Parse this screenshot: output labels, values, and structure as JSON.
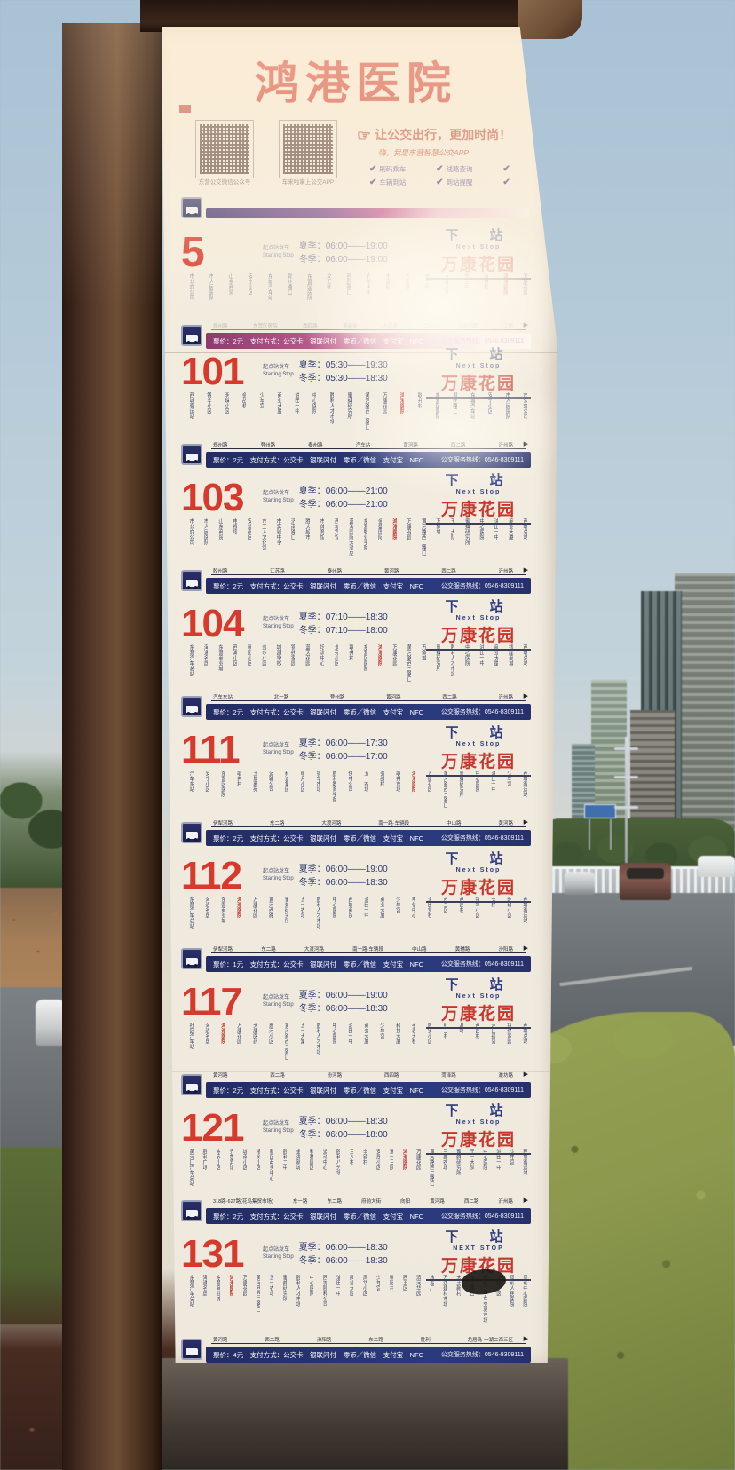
{
  "palette": {
    "accent_red": "#cf382d",
    "navy_bar": "#27306b",
    "next_blue": "#2c3a7e",
    "panel_bg": "#f0ebdf",
    "sky": "#a7c2d8",
    "hedge": "#8c9a48",
    "frame_brown": "#3a2417"
  },
  "sign": {
    "title": "鸿港医院",
    "qr_left_caption": "东营公交微信公众号",
    "qr_right_caption": "车来啦掌上公交APP",
    "slogan_line1": "让公交出行，更加时尚！",
    "slogan_line2": "嗨，我是东营智慧公交APP",
    "features": [
      "刷码乘车",
      "线路查询",
      "",
      "车辆到站",
      "到站提醒",
      ""
    ],
    "labels": {
      "start_cn": "起点站发车",
      "start_en": "Starting Stop",
      "summer": "夏季：",
      "winter": "冬季：",
      "next_cn": "下　站",
      "fare_label": "票价：",
      "pay_methods": "支付方式：公交卡　银联闪付　零币／微信　支付宝　NFC",
      "hotline": "公交服务热线：0546-8309111"
    },
    "highlight_stop": "鸿港医院",
    "routes": [
      {
        "number": "5",
        "summer": "06:00——19:00",
        "winter": "06:00——19:00",
        "next_en": "Next Stop",
        "next_stop": "万康花园",
        "fare": "2元",
        "stops": [
          "市公交公司",
          "市人民医院",
          "山东商贸",
          "安宁小区",
          "东城汽车站",
          "郑州路口",
          "东营区医院",
          "文汇街",
          "西四路口",
          "府前大街",
          "市政府",
          "人民路",
          "市二中",
          "大渡河路",
          "市三中",
          "耿井村",
          "鸿港医院",
          "万康花园"
        ],
        "timeline": [
          "郑州路",
          "东营区医院",
          "西四路",
          "府前街",
          "人民路",
          "二中",
          "大渡河路",
          "三中"
        ]
      },
      {
        "number": "101",
        "summer": "05:30——19:30",
        "winter": "05:30——18:30",
        "next_en": "Next Stop",
        "next_stop": "万康花园",
        "fare": "2元",
        "stops": [
          "西城客运站",
          "锦华小区",
          "明珠小区",
          "会战桥",
          "少年宫",
          "商业大厦",
          "油田一中",
          "中心医院",
          "胜利人才市场",
          "蜜蜂研究所",
          "黄河路西二路口",
          "万康花园",
          "鸿港医院",
          "耿井村",
          "东营区医院",
          "郑州路口",
          "东城汽车站",
          "安宁小区",
          "市人民医院",
          "市公交公司"
        ],
        "timeline": [
          "郑州路",
          "登州路",
          "泰州路",
          "汽车站",
          "黄河路",
          "西二路",
          "沂州路"
        ]
      },
      {
        "number": "103",
        "summer": "06:00——21:00",
        "winter": "06:00——21:00",
        "next_en": "Next Stop",
        "next_stop": "万康花园",
        "fare": "2元",
        "stops": [
          "市公交公司",
          "市人民医院",
          "山东商贸",
          "电视塔",
          "安慧南区",
          "市工人文化宫",
          "市实验中学",
          "济南路口",
          "胜大超市",
          "市体育馆",
          "西城宾馆",
          "蓝海国际大酒店",
          "东营职业学院",
          "金盛国际",
          "鸿港医院",
          "万康花园",
          "黄河路西二路口",
          "万象城",
          "王一大队",
          "蜜蜂研究所",
          "中心医院",
          "油田一中",
          "商业大厦",
          "西城总站"
        ],
        "timeline": [
          "胶州路",
          "江苏路",
          "泰州路",
          "黄河路",
          "西二路",
          "沂州路"
        ]
      },
      {
        "number": "104",
        "summer": "07:10——18:30",
        "winter": "07:10——18:00",
        "next_en": "Next Stop",
        "next_stop": "万康花园",
        "fare": "2元",
        "stops": [
          "东营汽车总站",
          "海通名居",
          "东营商业城",
          "西湖小区",
          "朝阳小区",
          "金水小区",
          "城建学校",
          "锦绣家园",
          "蓝天花园",
          "培训中心",
          "景苑小区",
          "耿井村",
          "东营区医院",
          "鸿港医院",
          "万康花园",
          "黄河路西二路口",
          "万象城",
          "蜜蜂研究所",
          "胜利人才市场",
          "中心医院",
          "油田一中",
          "商业大厦",
          "银座商城",
          "西城总站"
        ],
        "timeline": [
          "汽车东站",
          "北一路",
          "登州路",
          "黄河路",
          "西二路",
          "沂州路"
        ]
      },
      {
        "number": "111",
        "summer": "06:00——17:30",
        "winter": "06:00——17:00",
        "next_en": "Next Stop",
        "next_stop": "万康花园",
        "fare": "2元",
        "stops": [
          "汽车东站",
          "安宁小区",
          "东营区医院",
          "耿井村",
          "玉景嘉苑",
          "运输公司",
          "科达集团",
          "明月小区",
          "锦华市场",
          "胜利教育学院",
          "供电公司",
          "五一农场",
          "会战桥",
          "耿井市场",
          "鸿港医院",
          "万康花园",
          "黄河路西二路口",
          "蜜蜂研究所",
          "中心医院",
          "油田一中",
          "少年宫",
          "西城客运站"
        ],
        "timeline": [
          "伊犁河路",
          "东二路",
          "大渡河路",
          "南一路·车辆段",
          "中山路",
          "黄河路"
        ]
      },
      {
        "number": "112",
        "summer": "06:00——19:00",
        "winter": "06:00——18:30",
        "next_en": "Next Stop",
        "next_stop": "万康花园",
        "fare": "1元",
        "stops": [
          "东营汽车总站",
          "海通名居",
          "东营商业城",
          "鸿港医院",
          "万康花园",
          "黄河西路",
          "蜜蜂研究所",
          "五一农场",
          "胜利人才市场",
          "中心医院",
          "西城商贸",
          "油田一中",
          "商业大厦",
          "少年宫",
          "电信中心",
          "油田党校",
          "西二区",
          "西四村",
          "锦华小区",
          "天桥",
          "明珠小区",
          "西城客运站"
        ],
        "timeline": [
          "伊犁河路",
          "东二路",
          "大渡河路",
          "南一路·车辆段",
          "中山路",
          "黄辅路",
          "汾阳路"
        ]
      },
      {
        "number": "117",
        "summer": "06:00——19:00",
        "winter": "06:00——18:30",
        "next_en": "Next Stop",
        "next_stop": "万康花园",
        "fare": "2元",
        "stops": [
          "社区汽车站",
          "海通名居",
          "鸿港医院",
          "万康花园",
          "天康医药",
          "惠河小区",
          "黄河路西二路口",
          "五一大集",
          "胜利人才市场",
          "中心医院",
          "油田一中",
          "商会大厦",
          "少年宫",
          "科技大厦",
          "手表大楼",
          "胜安小区",
          "红三村",
          "基地",
          "西四村",
          "河口孤岛",
          "锦绣家园",
          "西城总站"
        ],
        "timeline": [
          "黄河路",
          "西二路",
          "汾河路",
          "西四路",
          "菏泽路",
          "潍坊路"
        ]
      },
      {
        "number": "121",
        "summer": "06:00——18:30",
        "winter": "06:00——18:00",
        "next_en": "Next Stop",
        "next_stop": "万康花园",
        "fare": "2元",
        "stops": [
          "黄河口汽车总站",
          "胜利广场",
          "东安小区",
          "齐鲁宾馆",
          "城南小区",
          "椿树小区",
          "新区政务中心",
          "胜利二中",
          "金湖新城",
          "科教园区",
          "运动中心",
          "胜利八分场",
          "三义村",
          "辛镇村",
          "安居小区",
          "通一三队",
          "鸿港医院",
          "万康花园",
          "黄河路西二路口",
          "三鑫农场",
          "蜜蜂研究所",
          "王一大队",
          "中心医院",
          "油田一中",
          "少年宫",
          "西城客运站"
        ],
        "timeline": [
          "318路·627路(花鸟集贸市场)",
          "东一路",
          "东二路",
          "府前大街",
          "向阳",
          "黄河路",
          "西二路",
          "沂州路"
        ]
      },
      {
        "number": "131",
        "summer": "06:00——18:30",
        "winter": "06:00——18:30",
        "next_en": "NEXT STOP",
        "next_stop": "万康花园",
        "fare": "4元",
        "stops": [
          "东营汽车总站",
          "海通名居",
          "东营商业城",
          "鸿港医院",
          "万康花园",
          "黄河西西二路口",
          "五一农场",
          "蜜蜂研究所",
          "胜利人才市场",
          "中心医院",
          "西城颐和公司",
          "油田一中",
          "商业大厦",
          "风华小区",
          "少年宫",
          "朝阳村",
          "西五区",
          "滨河华园",
          "水泥厂",
          "万达建材市场",
          "大王新村",
          "东二路口",
          "胜利二手车交易市场",
          "华怡小区",
          "垦利人民医院",
          "垦利中心医院"
        ],
        "timeline": [
          "黄河路",
          "西二路",
          "汾阳路",
          "东二路",
          "胜利",
          "龙居岛·一湖二海三区"
        ]
      }
    ]
  }
}
